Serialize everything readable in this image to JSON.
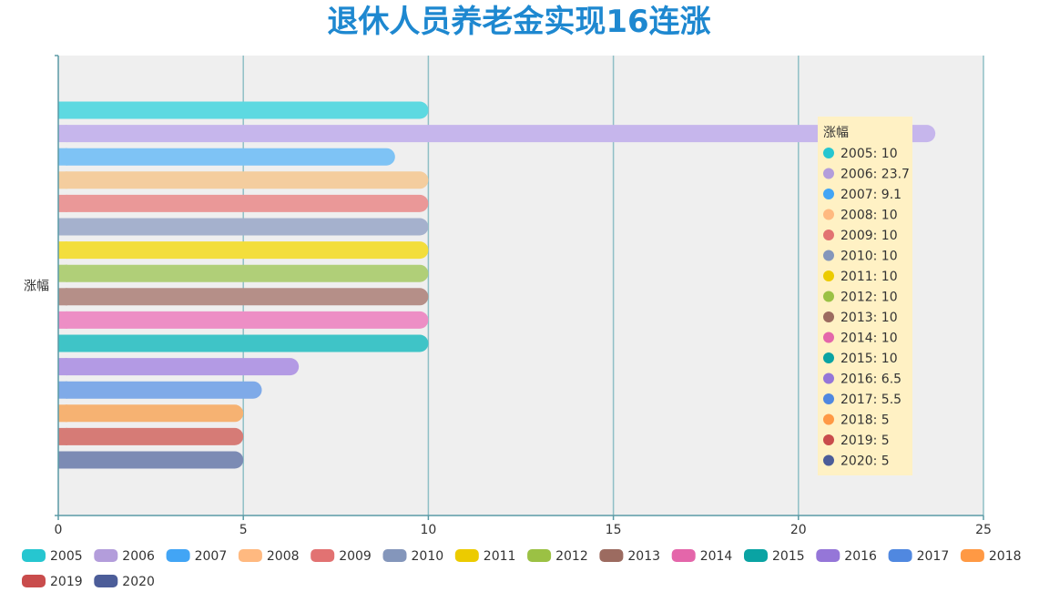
{
  "chart_data": {
    "type": "bar",
    "orientation": "horizontal",
    "title": "退休人员养老金实现16连涨",
    "category_label": "涨幅",
    "xlim": [
      0,
      25
    ],
    "x_ticks": [
      0,
      5,
      10,
      15,
      20,
      25
    ],
    "grid": true,
    "legend_position": "bottom",
    "series": [
      {
        "name": "2005",
        "value": 10,
        "color": "#26c6d0",
        "fill": "#5dd9e1"
      },
      {
        "name": "2006",
        "value": 23.7,
        "color": "#b39ddb",
        "fill": "#c6b6ec"
      },
      {
        "name": "2007",
        "value": 9.1,
        "color": "#42a5f5",
        "fill": "#7ec3f5"
      },
      {
        "name": "2008",
        "value": 10,
        "color": "#ffb980",
        "fill": "#f4cd9e"
      },
      {
        "name": "2009",
        "value": 10,
        "color": "#e27272",
        "fill": "#ea9898"
      },
      {
        "name": "2010",
        "value": 10,
        "color": "#8496bb",
        "fill": "#a5b1cd"
      },
      {
        "name": "2011",
        "value": 10,
        "color": "#eccb00",
        "fill": "#f3de3c"
      },
      {
        "name": "2012",
        "value": 10,
        "color": "#9bc144",
        "fill": "#b0cf78"
      },
      {
        "name": "2013",
        "value": 10,
        "color": "#9c6b60",
        "fill": "#b58f88"
      },
      {
        "name": "2014",
        "value": 10,
        "color": "#e466aa",
        "fill": "#ed8ec5"
      },
      {
        "name": "2015",
        "value": 10,
        "color": "#0aa3a3",
        "fill": "#3fc4c7"
      },
      {
        "name": "2016",
        "value": 6.5,
        "color": "#9576d8",
        "fill": "#b39ae4"
      },
      {
        "name": "2017",
        "value": 5.5,
        "color": "#5088e0",
        "fill": "#7faae8"
      },
      {
        "name": "2018",
        "value": 5,
        "color": "#ff9944",
        "fill": "#f6b272"
      },
      {
        "name": "2019",
        "value": 5,
        "color": "#c94c4c",
        "fill": "#d67b76"
      },
      {
        "name": "2020",
        "value": 5,
        "color": "#4c5d99",
        "fill": "#7c8bb4"
      }
    ],
    "tooltip": {
      "title": "涨幅",
      "entries": [
        "2005: 10",
        "2006: 23.7",
        "2007: 9.1",
        "2008: 10",
        "2009: 10",
        "2010: 10",
        "2011: 10",
        "2012: 10",
        "2013: 10",
        "2014: 10",
        "2015: 10",
        "2016: 6.5",
        "2017: 5.5",
        "2018: 5",
        "2019: 5",
        "2020: 5"
      ]
    }
  }
}
